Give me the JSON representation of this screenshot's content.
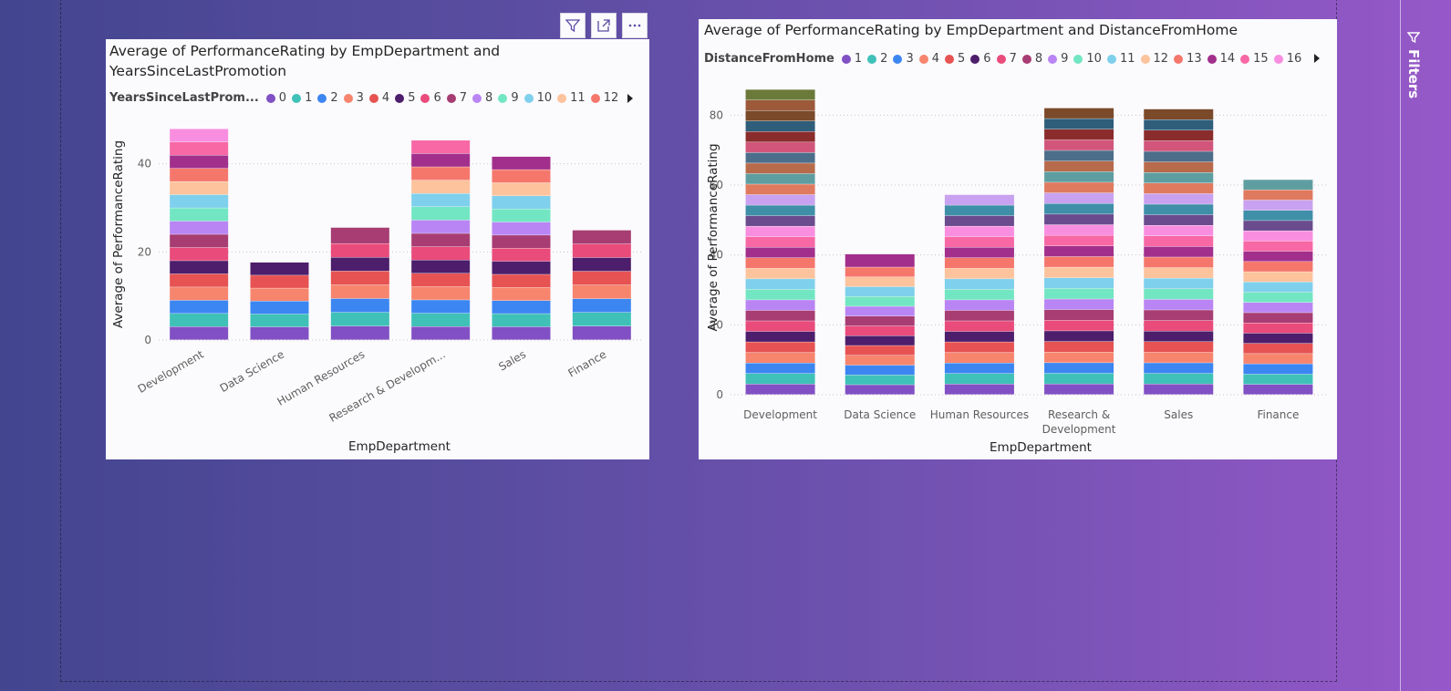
{
  "colors": {
    "palette": [
      "#8150c4",
      "#3fc1b8",
      "#3c86f2",
      "#f7856e",
      "#e65352",
      "#4d1e6b",
      "#e94b7b",
      "#a73d73",
      "#b985f4",
      "#72e6c2",
      "#7ed0ec",
      "#fcc39c",
      "#f5776c",
      "#a22f8c",
      "#f768a5",
      "#f98ee0",
      "#6a4c8e",
      "#3f8fa8",
      "#c8a2f0",
      "#e07a5f",
      "#5f9ea0",
      "#b86b4b",
      "#4c6e8a",
      "#d2557b",
      "#8b2c2c",
      "#2e5e7a",
      "#7b4a2a",
      "#9c5a3a",
      "#6b7a3a",
      "#3d5a50",
      "#a0522d"
    ],
    "accent": "#4d1e6b"
  },
  "toolbar": {
    "filter_icon": "filter-icon",
    "focus_icon": "focus-mode-icon",
    "more_icon": "more-options-icon"
  },
  "filters_pane": {
    "label": "Filters",
    "icon": "filter-icon"
  },
  "visual1": {
    "title": "Average of PerformanceRating by EmpDepartment and\nYearsSinceLastPromotion",
    "legend_title": "YearsSinceLastProm...",
    "legend_items": [
      "0",
      "1",
      "2",
      "3",
      "4",
      "5",
      "6",
      "7",
      "8",
      "9",
      "10",
      "11",
      "12"
    ],
    "xlabel": "EmpDepartment",
    "ylabel": "Average of PerformanceRating"
  },
  "visual2": {
    "title": "Average of PerformanceRating by EmpDepartment and DistanceFromHome",
    "legend_title": "DistanceFromHome",
    "legend_items": [
      "1",
      "2",
      "3",
      "4",
      "5",
      "6",
      "7",
      "8",
      "9",
      "10",
      "11",
      "12",
      "13",
      "14",
      "15",
      "16"
    ],
    "xlabel": "EmpDepartment",
    "ylabel": "Average of PerformanceRating"
  },
  "chart_data": [
    {
      "type": "bar",
      "stacked": true,
      "title": "Average of PerformanceRating by EmpDepartment and YearsSinceLastPromotion",
      "xlabel": "EmpDepartment",
      "ylabel": "Average of PerformanceRating",
      "categories": [
        "Development",
        "Data Science",
        "Human Resources",
        "Research & Developm...",
        "Sales",
        "Finance"
      ],
      "ylim": [
        0,
        48
      ],
      "yticks": [
        0,
        20,
        40
      ],
      "grid": true,
      "legend_position": "top",
      "segment_values": [
        [
          3,
          3,
          3,
          3,
          3,
          3,
          3,
          3,
          3,
          3,
          3,
          3,
          3,
          3,
          3,
          3
        ],
        [
          3,
          3,
          3,
          3,
          3,
          3
        ],
        [
          3,
          3,
          3,
          3,
          3,
          3,
          3,
          3.5
        ],
        [
          3,
          3,
          3,
          3,
          3,
          3,
          3,
          3,
          3,
          3,
          3,
          3,
          3,
          3,
          3
        ],
        [
          3,
          3,
          3,
          3,
          3,
          3,
          3,
          3,
          3,
          3,
          3,
          3,
          3,
          3
        ],
        [
          3,
          3,
          3,
          3,
          3,
          3,
          3,
          3
        ]
      ],
      "totals": [
        47.9,
        17.6,
        25.5,
        45.3,
        41.6,
        24.9
      ]
    },
    {
      "type": "bar",
      "stacked": true,
      "title": "Average of PerformanceRating by EmpDepartment and DistanceFromHome",
      "xlabel": "EmpDepartment",
      "ylabel": "Average of PerformanceRating",
      "categories": [
        "Development",
        "Data Science",
        "Human Resources",
        "Research & Development",
        "Sales",
        "Finance"
      ],
      "ylim": [
        0,
        90
      ],
      "yticks": [
        0,
        20,
        40,
        60,
        80
      ],
      "grid": true,
      "legend_position": "top",
      "segment_values": [
        [
          3,
          3,
          3,
          3,
          3,
          3,
          3,
          3,
          3,
          3,
          3,
          3,
          3,
          3,
          3,
          3,
          3,
          3,
          3,
          3,
          3,
          3,
          3,
          3,
          3,
          3,
          3,
          3,
          3
        ],
        [
          3,
          3,
          3,
          3,
          3,
          3,
          3,
          3,
          3,
          3,
          3,
          3,
          3,
          4
        ],
        [
          3,
          3,
          3,
          3,
          3,
          3,
          3,
          3,
          3,
          3,
          3,
          3,
          3,
          3,
          3,
          3,
          3,
          3,
          3
        ],
        [
          3,
          3,
          3,
          3,
          3,
          3,
          3,
          3,
          3,
          3,
          3,
          3,
          3,
          3,
          3,
          3,
          3,
          3,
          3,
          3,
          3,
          3,
          3,
          3,
          3,
          3,
          3
        ],
        [
          3,
          3,
          3,
          3,
          3,
          3,
          3,
          3,
          3,
          3,
          3,
          3,
          3,
          3,
          3,
          3,
          3,
          3,
          3,
          3,
          3,
          3,
          3,
          3,
          3,
          3,
          3
        ],
        [
          3,
          3,
          3,
          3,
          3,
          3,
          3,
          3,
          3,
          3,
          3,
          3,
          3,
          3,
          3,
          3,
          3,
          3,
          3,
          3,
          3
        ]
      ],
      "totals": [
        87.3,
        40.2,
        57.2,
        82.0,
        81.7,
        61.5
      ]
    }
  ]
}
